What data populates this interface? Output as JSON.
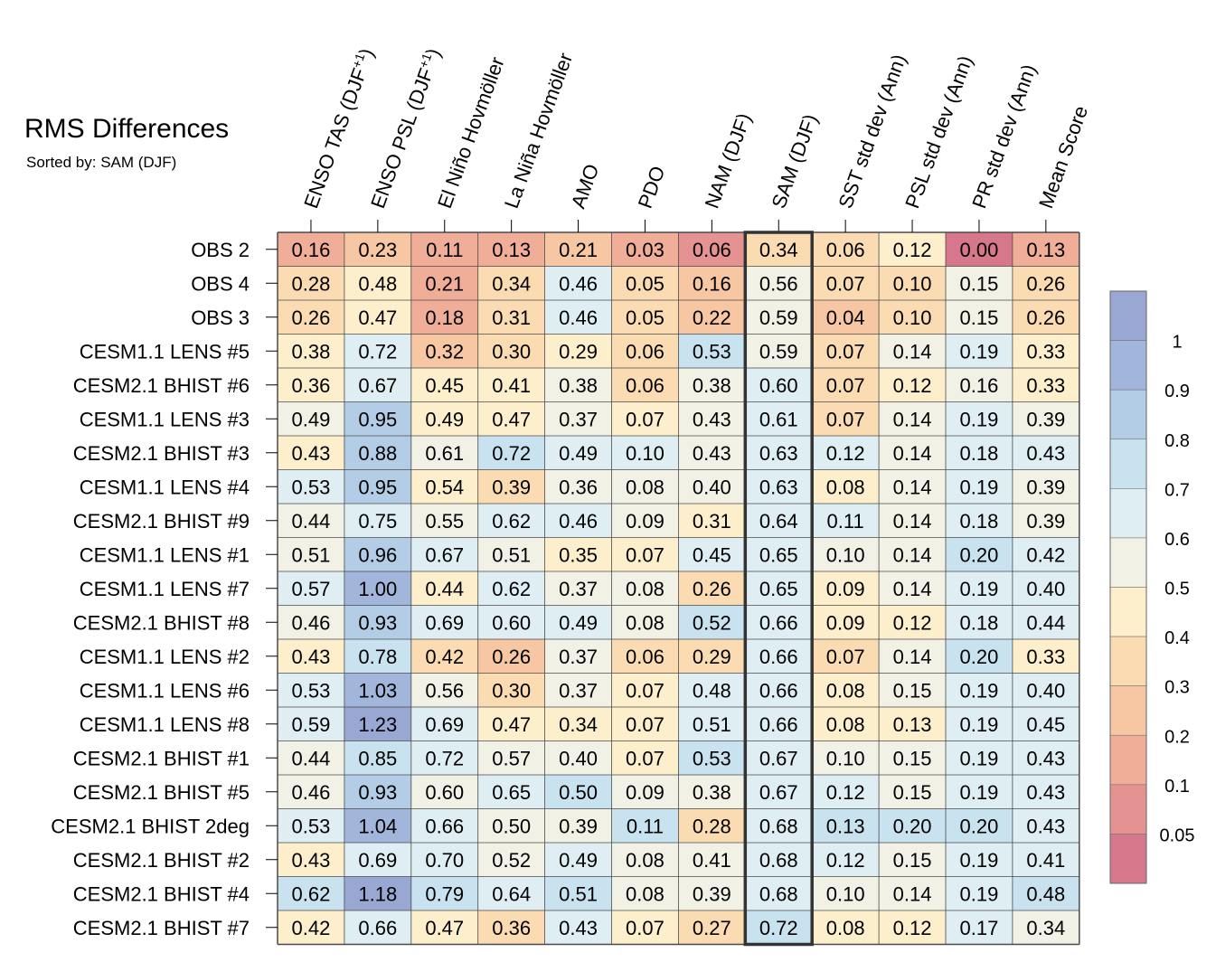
{
  "chart_data": {
    "type": "heatmap",
    "title": "RMS Differences",
    "subtitle": "Sorted by: SAM (DJF)",
    "highlighted_column": "SAM (DJF)",
    "columns": [
      {
        "label": "ENSO TAS (DJF",
        "sup": "+1",
        "suffix": ")"
      },
      {
        "label": "ENSO PSL (DJF",
        "sup": "+1",
        "suffix": ")"
      },
      {
        "label": "El Niño Hovmöller"
      },
      {
        "label": "La Niña Hovmöller"
      },
      {
        "label": "AMO"
      },
      {
        "label": "PDO"
      },
      {
        "label": "NAM (DJF)"
      },
      {
        "label": "SAM (DJF)"
      },
      {
        "label": "SST std dev (Ann)"
      },
      {
        "label": "PSL std dev (Ann)"
      },
      {
        "label": "PR std dev (Ann)"
      },
      {
        "label": "Mean Score"
      }
    ],
    "rows": [
      "OBS 2",
      "OBS 4",
      "OBS 3",
      "CESM1.1 LENS #5",
      "CESM2.1 BHIST #6",
      "CESM1.1 LENS #3",
      "CESM2.1 BHIST #3",
      "CESM1.1 LENS #4",
      "CESM2.1 BHIST #9",
      "CESM1.1 LENS #1",
      "CESM1.1 LENS #7",
      "CESM2.1 BHIST #8",
      "CESM1.1 LENS #2",
      "CESM1.1 LENS #6",
      "CESM1.1 LENS #8",
      "CESM2.1 BHIST #1",
      "CESM2.1 BHIST #5",
      "CESM2.1 BHIST 2deg",
      "CESM2.1 BHIST #2",
      "CESM2.1 BHIST #4",
      "CESM2.1 BHIST #7"
    ],
    "values": [
      [
        "0.16",
        "0.23",
        "0.11",
        "0.13",
        "0.21",
        "0.03",
        "0.06",
        "0.34",
        "0.06",
        "0.12",
        "0.00",
        "0.13"
      ],
      [
        "0.28",
        "0.48",
        "0.21",
        "0.34",
        "0.46",
        "0.05",
        "0.16",
        "0.56",
        "0.07",
        "0.10",
        "0.15",
        "0.26"
      ],
      [
        "0.26",
        "0.47",
        "0.18",
        "0.31",
        "0.46",
        "0.05",
        "0.22",
        "0.59",
        "0.04",
        "0.10",
        "0.15",
        "0.26"
      ],
      [
        "0.38",
        "0.72",
        "0.32",
        "0.30",
        "0.29",
        "0.06",
        "0.53",
        "0.59",
        "0.07",
        "0.14",
        "0.19",
        "0.33"
      ],
      [
        "0.36",
        "0.67",
        "0.45",
        "0.41",
        "0.38",
        "0.06",
        "0.38",
        "0.60",
        "0.07",
        "0.12",
        "0.16",
        "0.33"
      ],
      [
        "0.49",
        "0.95",
        "0.49",
        "0.47",
        "0.37",
        "0.07",
        "0.43",
        "0.61",
        "0.07",
        "0.14",
        "0.19",
        "0.39"
      ],
      [
        "0.43",
        "0.88",
        "0.61",
        "0.72",
        "0.49",
        "0.10",
        "0.43",
        "0.63",
        "0.12",
        "0.14",
        "0.18",
        "0.43"
      ],
      [
        "0.53",
        "0.95",
        "0.54",
        "0.39",
        "0.36",
        "0.08",
        "0.40",
        "0.63",
        "0.08",
        "0.14",
        "0.19",
        "0.39"
      ],
      [
        "0.44",
        "0.75",
        "0.55",
        "0.62",
        "0.46",
        "0.09",
        "0.31",
        "0.64",
        "0.11",
        "0.14",
        "0.18",
        "0.39"
      ],
      [
        "0.51",
        "0.96",
        "0.67",
        "0.51",
        "0.35",
        "0.07",
        "0.45",
        "0.65",
        "0.10",
        "0.14",
        "0.20",
        "0.42"
      ],
      [
        "0.57",
        "1.00",
        "0.44",
        "0.62",
        "0.37",
        "0.08",
        "0.26",
        "0.65",
        "0.09",
        "0.14",
        "0.19",
        "0.40"
      ],
      [
        "0.46",
        "0.93",
        "0.69",
        "0.60",
        "0.49",
        "0.08",
        "0.52",
        "0.66",
        "0.09",
        "0.12",
        "0.18",
        "0.44"
      ],
      [
        "0.43",
        "0.78",
        "0.42",
        "0.26",
        "0.37",
        "0.06",
        "0.29",
        "0.66",
        "0.07",
        "0.14",
        "0.20",
        "0.33"
      ],
      [
        "0.53",
        "1.03",
        "0.56",
        "0.30",
        "0.37",
        "0.07",
        "0.48",
        "0.66",
        "0.08",
        "0.15",
        "0.19",
        "0.40"
      ],
      [
        "0.59",
        "1.23",
        "0.69",
        "0.47",
        "0.34",
        "0.07",
        "0.51",
        "0.66",
        "0.08",
        "0.13",
        "0.19",
        "0.45"
      ],
      [
        "0.44",
        "0.85",
        "0.72",
        "0.57",
        "0.40",
        "0.07",
        "0.53",
        "0.67",
        "0.10",
        "0.15",
        "0.19",
        "0.43"
      ],
      [
        "0.46",
        "0.93",
        "0.60",
        "0.65",
        "0.50",
        "0.09",
        "0.38",
        "0.67",
        "0.12",
        "0.15",
        "0.19",
        "0.43"
      ],
      [
        "0.53",
        "1.04",
        "0.66",
        "0.50",
        "0.39",
        "0.11",
        "0.28",
        "0.68",
        "0.13",
        "0.20",
        "0.20",
        "0.43"
      ],
      [
        "0.43",
        "0.69",
        "0.70",
        "0.52",
        "0.49",
        "0.08",
        "0.41",
        "0.68",
        "0.12",
        "0.15",
        "0.19",
        "0.41"
      ],
      [
        "0.62",
        "1.18",
        "0.79",
        "0.64",
        "0.51",
        "0.08",
        "0.39",
        "0.68",
        "0.10",
        "0.14",
        "0.19",
        "0.48"
      ],
      [
        "0.42",
        "0.66",
        "0.47",
        "0.36",
        "0.43",
        "0.07",
        "0.27",
        "0.72",
        "0.08",
        "0.12",
        "0.17",
        "0.34"
      ]
    ],
    "colorbar": {
      "labels": [
        "1",
        "0.9",
        "0.8",
        "0.7",
        "0.6",
        "0.5",
        "0.4",
        "0.3",
        "0.2",
        "0.1",
        "0.05"
      ],
      "bounds": [
        0.05,
        0.1,
        0.2,
        0.3,
        0.4,
        0.5,
        0.6,
        0.7,
        0.8,
        0.9,
        1
      ],
      "colors": [
        "#d6778b",
        "#e59293",
        "#f0ad98",
        "#f6c7a2",
        "#fbdcb2",
        "#fdefcc",
        "#f1f1e6",
        "#deeef3",
        "#c9e2ef",
        "#b2cde5",
        "#a2b5da",
        "#98a8d2"
      ]
    },
    "grid": true,
    "legend_position": "right"
  }
}
